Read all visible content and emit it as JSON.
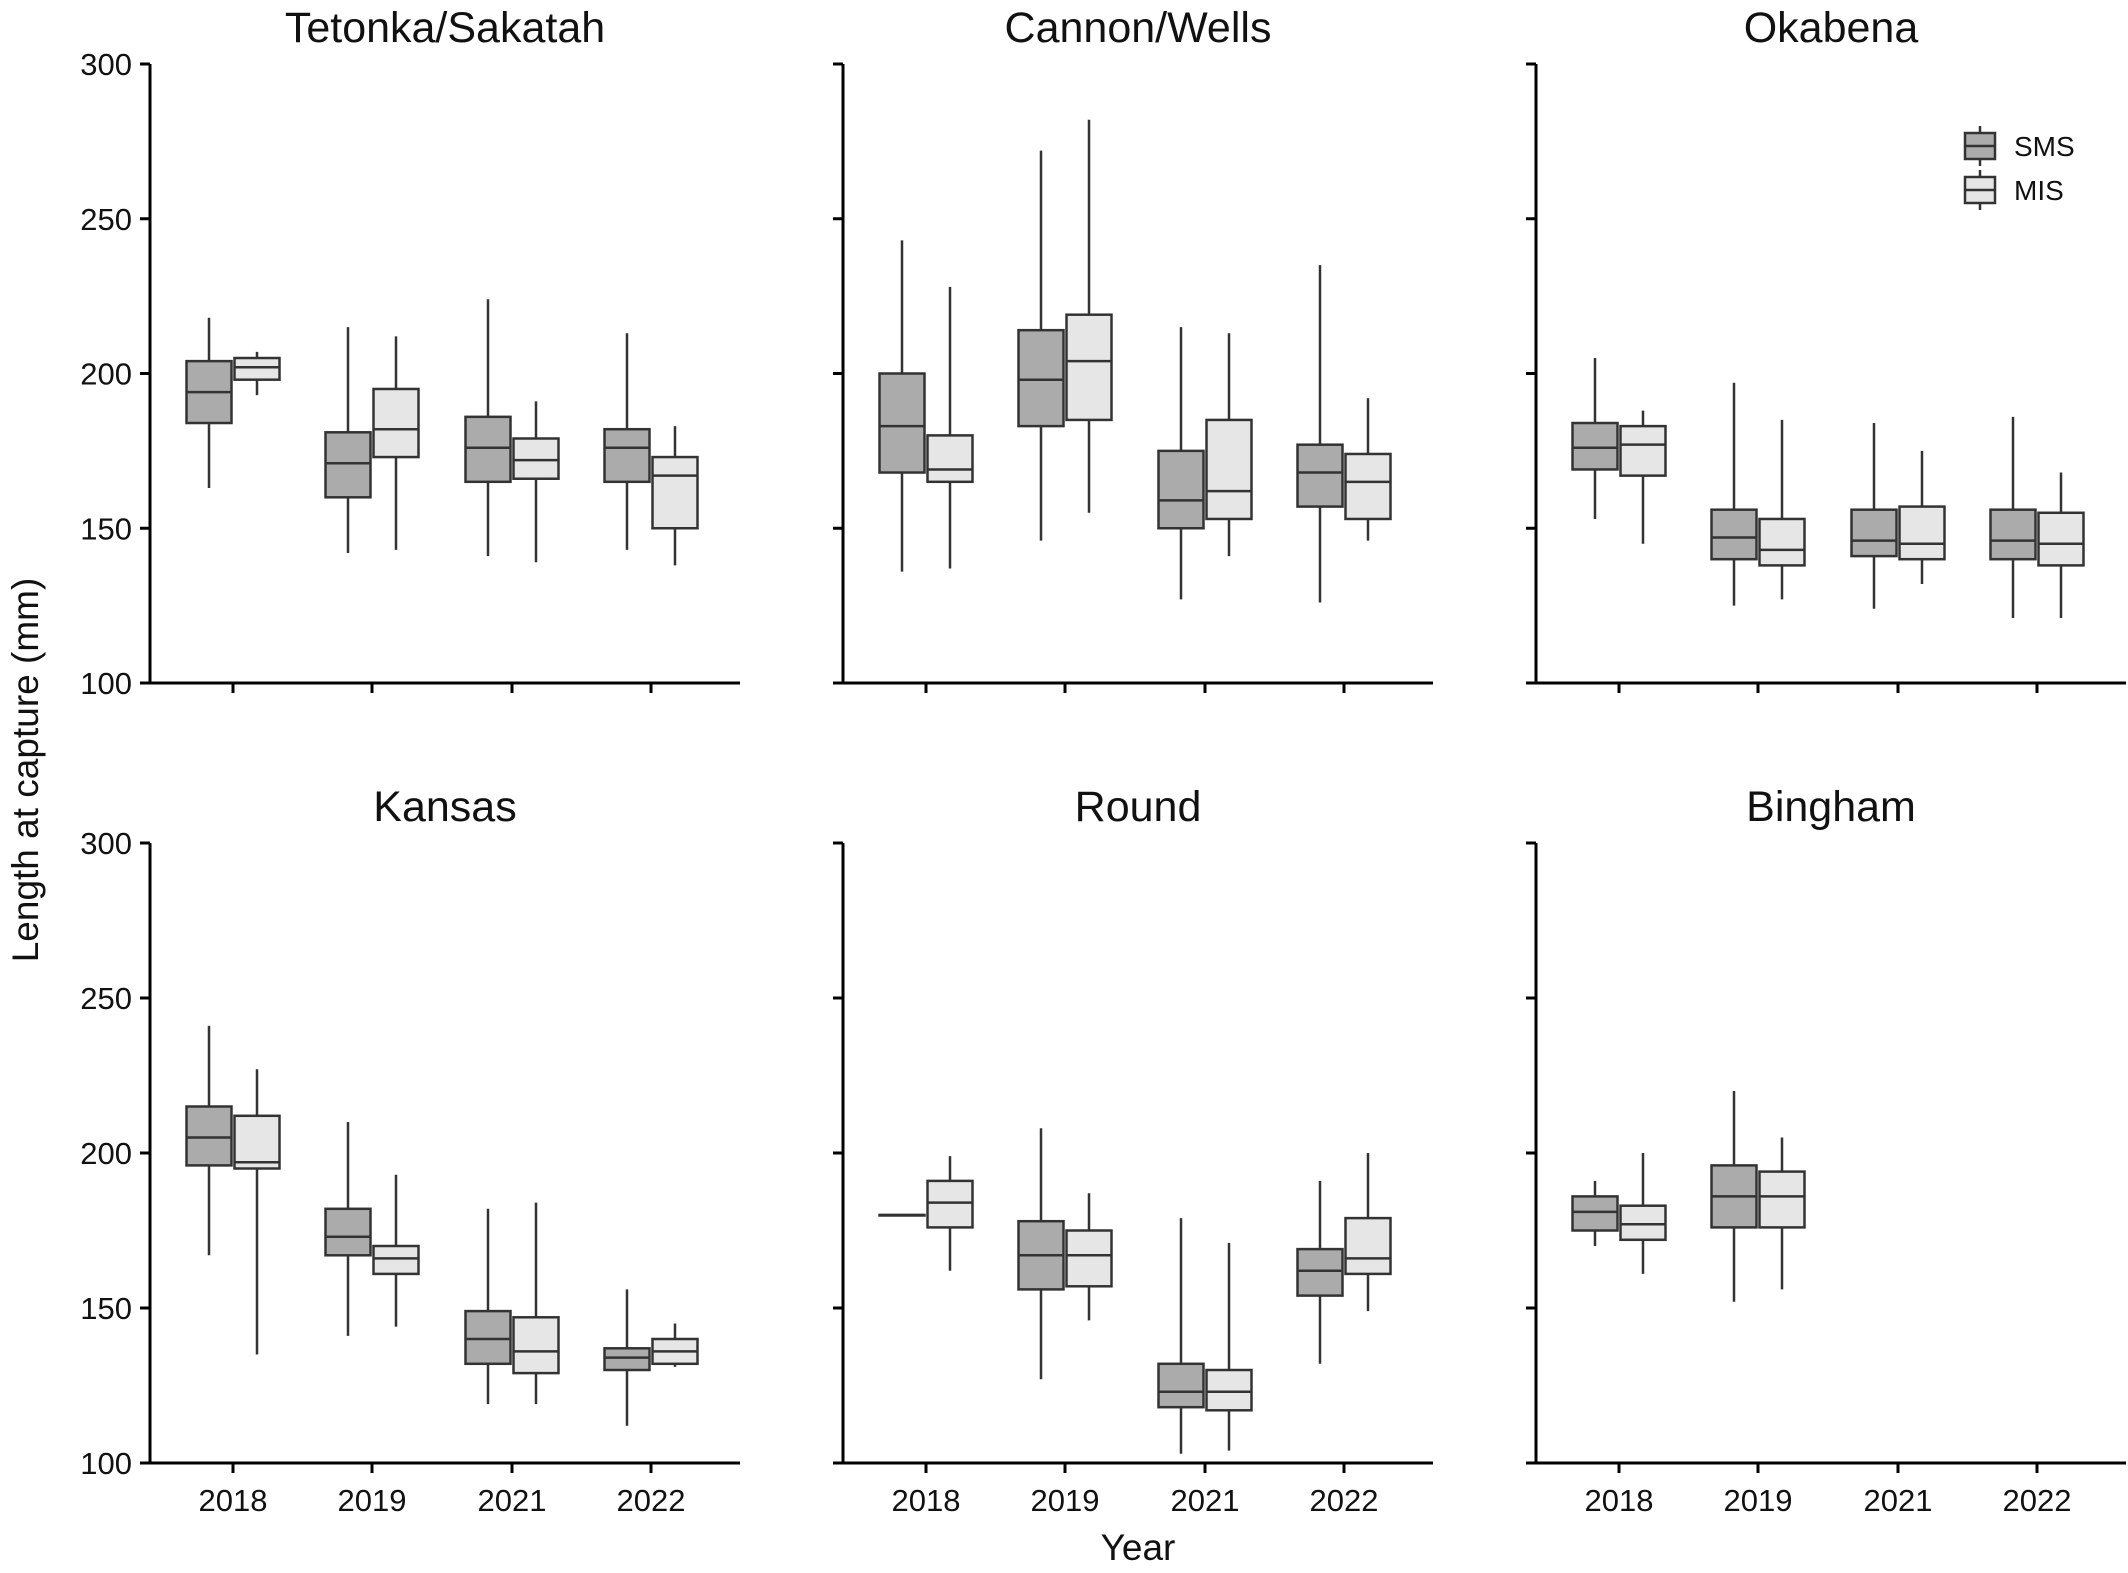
{
  "figure": {
    "ylabel": "Length at capture (mm)",
    "xlabel": "Year"
  },
  "colors": {
    "SMS": "#ababab",
    "MIS": "#e6e6e6",
    "stroke": "#333333"
  },
  "chart_data": {
    "type": "boxplot",
    "ylim": [
      100,
      300
    ],
    "yticks": [
      100,
      150,
      200,
      250,
      300
    ],
    "categories": [
      "2018",
      "2019",
      "2021",
      "2022"
    ],
    "series_names": [
      "SMS",
      "MIS"
    ],
    "legend_position": "top-right (Okabena panel)",
    "grid": false,
    "panels": [
      {
        "title": "Tetonka/Sakatah",
        "boxes": [
          {
            "year": "2018",
            "series": "SMS",
            "min": 163,
            "q1": 184,
            "median": 194,
            "q3": 204,
            "max": 218
          },
          {
            "year": "2018",
            "series": "MIS",
            "min": 193,
            "q1": 198,
            "median": 202,
            "q3": 205,
            "max": 207
          },
          {
            "year": "2019",
            "series": "SMS",
            "min": 142,
            "q1": 160,
            "median": 171,
            "q3": 181,
            "max": 215
          },
          {
            "year": "2019",
            "series": "MIS",
            "min": 143,
            "q1": 173,
            "median": 182,
            "q3": 195,
            "max": 212
          },
          {
            "year": "2021",
            "series": "SMS",
            "min": 141,
            "q1": 165,
            "median": 176,
            "q3": 186,
            "max": 224
          },
          {
            "year": "2021",
            "series": "MIS",
            "min": 139,
            "q1": 166,
            "median": 172,
            "q3": 179,
            "max": 191
          },
          {
            "year": "2022",
            "series": "SMS",
            "min": 143,
            "q1": 165,
            "median": 176,
            "q3": 182,
            "max": 213
          },
          {
            "year": "2022",
            "series": "MIS",
            "min": 138,
            "q1": 150,
            "median": 167,
            "q3": 173,
            "max": 183
          }
        ]
      },
      {
        "title": "Cannon/Wells",
        "boxes": [
          {
            "year": "2018",
            "series": "SMS",
            "min": 136,
            "q1": 168,
            "median": 183,
            "q3": 200,
            "max": 243
          },
          {
            "year": "2018",
            "series": "MIS",
            "min": 137,
            "q1": 165,
            "median": 169,
            "q3": 180,
            "max": 228
          },
          {
            "year": "2019",
            "series": "SMS",
            "min": 146,
            "q1": 183,
            "median": 198,
            "q3": 214,
            "max": 272
          },
          {
            "year": "2019",
            "series": "MIS",
            "min": 155,
            "q1": 185,
            "median": 204,
            "q3": 219,
            "max": 282
          },
          {
            "year": "2021",
            "series": "SMS",
            "min": 127,
            "q1": 150,
            "median": 159,
            "q3": 175,
            "max": 215
          },
          {
            "year": "2021",
            "series": "MIS",
            "min": 141,
            "q1": 153,
            "median": 162,
            "q3": 185,
            "max": 213
          },
          {
            "year": "2022",
            "series": "SMS",
            "min": 126,
            "q1": 157,
            "median": 168,
            "q3": 177,
            "max": 235
          },
          {
            "year": "2022",
            "series": "MIS",
            "min": 146,
            "q1": 153,
            "median": 165,
            "q3": 174,
            "max": 192
          }
        ]
      },
      {
        "title": "Okabena",
        "showLegend": true,
        "boxes": [
          {
            "year": "2018",
            "series": "SMS",
            "min": 153,
            "q1": 169,
            "median": 176,
            "q3": 184,
            "max": 205
          },
          {
            "year": "2018",
            "series": "MIS",
            "min": 145,
            "q1": 167,
            "median": 177,
            "q3": 183,
            "max": 188
          },
          {
            "year": "2019",
            "series": "SMS",
            "min": 125,
            "q1": 140,
            "median": 147,
            "q3": 156,
            "max": 197
          },
          {
            "year": "2019",
            "series": "MIS",
            "min": 127,
            "q1": 138,
            "median": 143,
            "q3": 153,
            "max": 185
          },
          {
            "year": "2021",
            "series": "SMS",
            "min": 124,
            "q1": 141,
            "median": 146,
            "q3": 156,
            "max": 184
          },
          {
            "year": "2021",
            "series": "MIS",
            "min": 132,
            "q1": 140,
            "median": 145,
            "q3": 157,
            "max": 175
          },
          {
            "year": "2022",
            "series": "SMS",
            "min": 121,
            "q1": 140,
            "median": 146,
            "q3": 156,
            "max": 186
          },
          {
            "year": "2022",
            "series": "MIS",
            "min": 121,
            "q1": 138,
            "median": 145,
            "q3": 155,
            "max": 168
          }
        ]
      },
      {
        "title": "Kansas",
        "boxes": [
          {
            "year": "2018",
            "series": "SMS",
            "min": 167,
            "q1": 196,
            "median": 205,
            "q3": 215,
            "max": 241
          },
          {
            "year": "2018",
            "series": "MIS",
            "min": 135,
            "q1": 195,
            "median": 197,
            "q3": 212,
            "max": 227
          },
          {
            "year": "2019",
            "series": "SMS",
            "min": 141,
            "q1": 167,
            "median": 173,
            "q3": 182,
            "max": 210
          },
          {
            "year": "2019",
            "series": "MIS",
            "min": 144,
            "q1": 161,
            "median": 166,
            "q3": 170,
            "max": 193
          },
          {
            "year": "2021",
            "series": "SMS",
            "min": 119,
            "q1": 132,
            "median": 140,
            "q3": 149,
            "max": 182
          },
          {
            "year": "2021",
            "series": "MIS",
            "min": 119,
            "q1": 129,
            "median": 136,
            "q3": 147,
            "max": 184
          },
          {
            "year": "2022",
            "series": "SMS",
            "min": 112,
            "q1": 130,
            "median": 134,
            "q3": 137,
            "max": 156
          },
          {
            "year": "2022",
            "series": "MIS",
            "min": 131,
            "q1": 132,
            "median": 136,
            "q3": 140,
            "max": 145
          }
        ]
      },
      {
        "title": "Round",
        "boxes": [
          {
            "year": "2018",
            "series": "SMS",
            "min": 180,
            "q1": 180,
            "median": 180,
            "q3": 180,
            "max": 180
          },
          {
            "year": "2018",
            "series": "MIS",
            "min": 162,
            "q1": 176,
            "median": 184,
            "q3": 191,
            "max": 199
          },
          {
            "year": "2019",
            "series": "SMS",
            "min": 127,
            "q1": 156,
            "median": 167,
            "q3": 178,
            "max": 208
          },
          {
            "year": "2019",
            "series": "MIS",
            "min": 146,
            "q1": 157,
            "median": 167,
            "q3": 175,
            "max": 187
          },
          {
            "year": "2021",
            "series": "SMS",
            "min": 103,
            "q1": 118,
            "median": 123,
            "q3": 132,
            "max": 179
          },
          {
            "year": "2021",
            "series": "MIS",
            "min": 104,
            "q1": 117,
            "median": 123,
            "q3": 130,
            "max": 171
          },
          {
            "year": "2022",
            "series": "SMS",
            "min": 132,
            "q1": 154,
            "median": 162,
            "q3": 169,
            "max": 191
          },
          {
            "year": "2022",
            "series": "MIS",
            "min": 149,
            "q1": 161,
            "median": 166,
            "q3": 179,
            "max": 200
          }
        ]
      },
      {
        "title": "Bingham",
        "boxes": [
          {
            "year": "2018",
            "series": "SMS",
            "min": 170,
            "q1": 175,
            "median": 181,
            "q3": 186,
            "max": 191
          },
          {
            "year": "2018",
            "series": "MIS",
            "min": 161,
            "q1": 172,
            "median": 177,
            "q3": 183,
            "max": 200
          },
          {
            "year": "2019",
            "series": "SMS",
            "min": 152,
            "q1": 176,
            "median": 186,
            "q3": 196,
            "max": 220
          },
          {
            "year": "2019",
            "series": "MIS",
            "min": 156,
            "q1": 176,
            "median": 186,
            "q3": 194,
            "max": 205
          }
        ]
      }
    ]
  }
}
